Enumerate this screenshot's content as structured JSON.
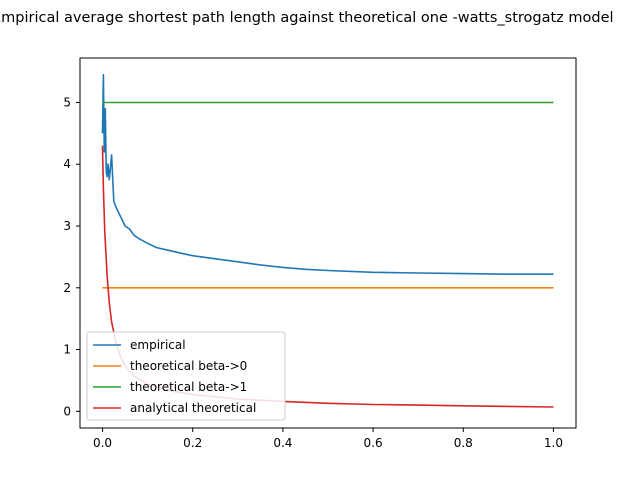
{
  "chart_data": {
    "type": "line",
    "title": "Empirical average shortest path length against theoretical one -watts_strogatz model",
    "xlabel": "",
    "ylabel": "",
    "xlim": [
      -0.05,
      1.05
    ],
    "ylim": [
      -0.27,
      5.72
    ],
    "x_ticks": [
      0.0,
      0.2,
      0.4,
      0.6,
      0.8,
      1.0
    ],
    "x_tick_labels": [
      "0.0",
      "0.2",
      "0.4",
      "0.6",
      "0.8",
      "1.0"
    ],
    "y_ticks": [
      0,
      1,
      2,
      3,
      4,
      5
    ],
    "y_tick_labels": [
      "0",
      "1",
      "2",
      "3",
      "4",
      "5"
    ],
    "grid": false,
    "legend_position": "lower-left",
    "series": [
      {
        "name": "empirical",
        "color": "#1f77b4",
        "x": [
          0.0,
          0.002,
          0.004,
          0.006,
          0.008,
          0.01,
          0.012,
          0.015,
          0.02,
          0.025,
          0.03,
          0.04,
          0.05,
          0.06,
          0.07,
          0.08,
          0.1,
          0.12,
          0.15,
          0.18,
          0.2,
          0.25,
          0.3,
          0.35,
          0.4,
          0.45,
          0.5,
          0.6,
          0.7,
          0.8,
          0.9,
          1.0
        ],
        "y": [
          4.5,
          5.45,
          4.2,
          4.9,
          3.9,
          3.8,
          4.0,
          3.75,
          4.15,
          3.4,
          3.3,
          3.15,
          3.0,
          2.95,
          2.85,
          2.8,
          2.72,
          2.65,
          2.6,
          2.55,
          2.52,
          2.47,
          2.42,
          2.37,
          2.33,
          2.3,
          2.28,
          2.25,
          2.24,
          2.23,
          2.22,
          2.22
        ]
      },
      {
        "name": "theoretical beta->0",
        "color": "#ff7f0e",
        "x": [
          0.0,
          1.0
        ],
        "y": [
          2.0,
          2.0
        ]
      },
      {
        "name": "theoretical beta->1",
        "color": "#2ca02c",
        "x": [
          0.0,
          1.0
        ],
        "y": [
          5.0,
          5.0
        ]
      },
      {
        "name": "analytical theoretical",
        "color": "#d62728",
        "x": [
          0.0,
          0.002,
          0.005,
          0.01,
          0.015,
          0.02,
          0.03,
          0.04,
          0.05,
          0.07,
          0.1,
          0.15,
          0.2,
          0.3,
          0.4,
          0.5,
          0.6,
          0.7,
          0.8,
          0.9,
          1.0
        ],
        "y": [
          4.3,
          3.6,
          2.9,
          2.2,
          1.75,
          1.45,
          1.1,
          0.88,
          0.74,
          0.57,
          0.44,
          0.33,
          0.27,
          0.2,
          0.16,
          0.13,
          0.11,
          0.1,
          0.09,
          0.08,
          0.07
        ]
      }
    ]
  }
}
